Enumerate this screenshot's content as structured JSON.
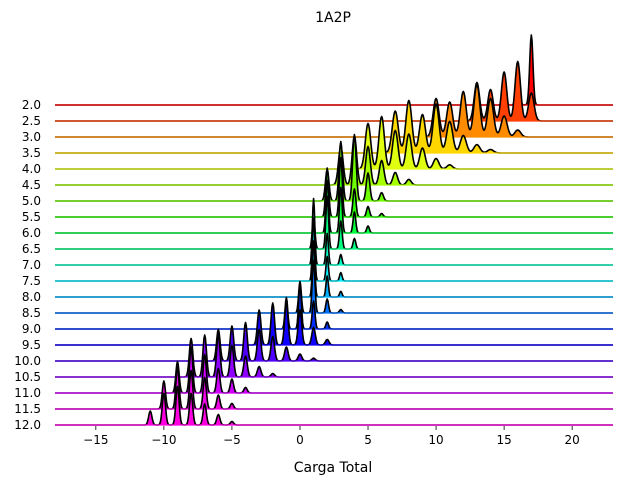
{
  "chart_data": {
    "type": "area",
    "subtype": "ridgeline",
    "title": "1A2P",
    "xlabel": "Carga Total",
    "ylabel": "",
    "xlim": [
      -18,
      23
    ],
    "x_ticks": [
      -15,
      -10,
      -5,
      0,
      5,
      10,
      15,
      20
    ],
    "grid": false,
    "legend": "none",
    "series": [
      {
        "label": "2.0",
        "color": "#ff0000",
        "peaks": [
          [
            16,
            0.6
          ],
          [
            17,
            1.0
          ],
          [
            15,
            0.2
          ]
        ],
        "width": 0.12
      },
      {
        "label": "2.5",
        "color": "#ff4000",
        "peaks": [
          [
            13,
            0.55
          ],
          [
            14,
            0.45
          ],
          [
            15,
            0.7
          ],
          [
            16,
            0.85
          ],
          [
            17,
            0.4
          ]
        ],
        "width": 0.2
      },
      {
        "label": "3.0",
        "color": "#ff8c00",
        "peaks": [
          [
            10,
            0.55
          ],
          [
            11,
            0.5
          ],
          [
            12,
            0.65
          ],
          [
            13,
            0.75
          ],
          [
            14,
            0.55
          ],
          [
            15,
            0.3
          ],
          [
            16,
            0.1
          ]
        ],
        "width": 0.22
      },
      {
        "label": "3.5",
        "color": "#ffd700",
        "peaks": [
          [
            7,
            0.6
          ],
          [
            8,
            0.75
          ],
          [
            9,
            0.55
          ],
          [
            10,
            0.7
          ],
          [
            11,
            0.45
          ],
          [
            12,
            0.25
          ],
          [
            13,
            0.12
          ],
          [
            14,
            0.05
          ]
        ],
        "width": 0.22
      },
      {
        "label": "4.0",
        "color": "#e0ff10",
        "peaks": [
          [
            5,
            0.65
          ],
          [
            6,
            0.75
          ],
          [
            7,
            0.55
          ],
          [
            8,
            0.5
          ],
          [
            9,
            0.3
          ],
          [
            10,
            0.15
          ],
          [
            11,
            0.06
          ]
        ],
        "width": 0.2
      },
      {
        "label": "4.5",
        "color": "#a6ff00",
        "peaks": [
          [
            3,
            0.55
          ],
          [
            4,
            0.7
          ],
          [
            5,
            0.55
          ],
          [
            6,
            0.35
          ],
          [
            7,
            0.18
          ],
          [
            8,
            0.08
          ]
        ],
        "width": 0.17
      },
      {
        "label": "5.0",
        "color": "#70ff00",
        "peaks": [
          [
            2,
            0.45
          ],
          [
            3,
            0.85
          ],
          [
            4,
            0.95
          ],
          [
            5,
            0.4
          ],
          [
            6,
            0.12
          ]
        ],
        "width": 0.13
      },
      {
        "label": "5.5",
        "color": "#2cff00",
        "peaks": [
          [
            2,
            0.7
          ],
          [
            3,
            0.85
          ],
          [
            4,
            0.4
          ],
          [
            5,
            0.15
          ],
          [
            6,
            0.05
          ]
        ],
        "width": 0.11
      },
      {
        "label": "6.0",
        "color": "#00ff3c",
        "peaks": [
          [
            2,
            0.75
          ],
          [
            3,
            0.65
          ],
          [
            4,
            0.3
          ],
          [
            5,
            0.1
          ]
        ],
        "width": 0.1
      },
      {
        "label": "6.5",
        "color": "#00ff80",
        "peaks": [
          [
            1,
            0.45
          ],
          [
            2,
            0.75
          ],
          [
            3,
            0.4
          ],
          [
            4,
            0.15
          ]
        ],
        "width": 0.1
      },
      {
        "label": "7.0",
        "color": "#00ffc4",
        "peaks": [
          [
            1,
            0.95
          ],
          [
            2,
            0.45
          ],
          [
            3,
            0.15
          ]
        ],
        "width": 0.09
      },
      {
        "label": "7.5",
        "color": "#00f0ff",
        "peaks": [
          [
            1,
            0.9
          ],
          [
            2,
            0.35
          ],
          [
            3,
            0.12
          ]
        ],
        "width": 0.09
      },
      {
        "label": "8.0",
        "color": "#00b0ff",
        "peaks": [
          [
            1,
            0.8
          ],
          [
            2,
            0.3
          ],
          [
            3,
            0.08
          ]
        ],
        "width": 0.09
      },
      {
        "label": "8.5",
        "color": "#0070ff",
        "peaks": [
          [
            0,
            0.45
          ],
          [
            1,
            0.75
          ],
          [
            2,
            0.2
          ],
          [
            3,
            0.05
          ]
        ],
        "width": 0.1
      },
      {
        "label": "9.0",
        "color": "#0030ff",
        "peaks": [
          [
            -1,
            0.45
          ],
          [
            0,
            0.65
          ],
          [
            1,
            0.4
          ],
          [
            2,
            0.1
          ]
        ],
        "width": 0.1
      },
      {
        "label": "9.5",
        "color": "#1000ff",
        "peaks": [
          [
            -3,
            0.5
          ],
          [
            -2,
            0.6
          ],
          [
            -1,
            0.6
          ],
          [
            0,
            0.5
          ],
          [
            1,
            0.25
          ],
          [
            2,
            0.08
          ]
        ],
        "width": 0.13
      },
      {
        "label": "10.0",
        "color": "#5000ff",
        "peaks": [
          [
            -6,
            0.45
          ],
          [
            -5,
            0.5
          ],
          [
            -4,
            0.55
          ],
          [
            -3,
            0.45
          ],
          [
            -2,
            0.35
          ],
          [
            -1,
            0.2
          ],
          [
            0,
            0.1
          ],
          [
            1,
            0.04
          ]
        ],
        "width": 0.13
      },
      {
        "label": "10.5",
        "color": "#9000ff",
        "peaks": [
          [
            -8,
            0.55
          ],
          [
            -7,
            0.6
          ],
          [
            -6,
            0.6
          ],
          [
            -5,
            0.45
          ],
          [
            -4,
            0.3
          ],
          [
            -3,
            0.15
          ],
          [
            -2,
            0.05
          ]
        ],
        "width": 0.13
      },
      {
        "label": "11.0",
        "color": "#d000ff",
        "peaks": [
          [
            -9,
            0.45
          ],
          [
            -8,
            0.65
          ],
          [
            -7,
            0.55
          ],
          [
            -6,
            0.35
          ],
          [
            -5,
            0.2
          ],
          [
            -4,
            0.08
          ]
        ],
        "width": 0.12
      },
      {
        "label": "11.5",
        "color": "#f000e8",
        "peaks": [
          [
            -10,
            0.4
          ],
          [
            -9,
            0.6
          ],
          [
            -8,
            0.55
          ],
          [
            -7,
            0.45
          ],
          [
            -6,
            0.2
          ],
          [
            -5,
            0.08
          ]
        ],
        "width": 0.12
      },
      {
        "label": "12.0",
        "color": "#ff00e0",
        "peaks": [
          [
            -11,
            0.2
          ],
          [
            -10,
            0.45
          ],
          [
            -9,
            0.55
          ],
          [
            -8,
            0.45
          ],
          [
            -7,
            0.3
          ],
          [
            -6,
            0.15
          ],
          [
            -5,
            0.05
          ]
        ],
        "width": 0.12
      }
    ]
  }
}
